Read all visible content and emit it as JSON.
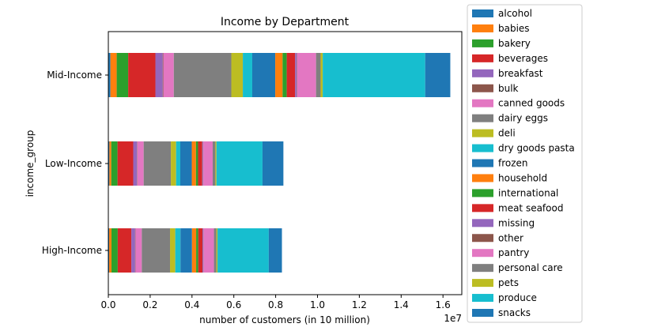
{
  "chart_data": {
    "type": "bar",
    "orientation": "horizontal",
    "stacked": true,
    "title": "Income by Department",
    "xlabel": "number of customers (in 10 million)",
    "ylabel": "income_group",
    "x_offset_label": "1e7",
    "xlim": [
      0,
      1.69
    ],
    "xticks": [
      "0.0",
      "0.2",
      "0.4",
      "0.6",
      "0.8",
      "1.0",
      "1.2",
      "1.4",
      "1.6"
    ],
    "grid": false,
    "legend_position": "outside right",
    "categories": [
      "High-Income",
      "Low-Income",
      "Mid-Income"
    ],
    "series": [
      {
        "name": "alcohol",
        "color": "#1f77b4",
        "values": [
          0.004,
          0.005,
          0.01
        ]
      },
      {
        "name": "babies",
        "color": "#ff7f0e",
        "values": [
          0.011,
          0.009,
          0.03
        ]
      },
      {
        "name": "bakery",
        "color": "#2ca02c",
        "values": [
          0.03,
          0.03,
          0.055
        ]
      },
      {
        "name": "beverages",
        "color": "#d62728",
        "values": [
          0.065,
          0.075,
          0.13
        ]
      },
      {
        "name": "breakfast",
        "color": "#9467bd",
        "values": [
          0.018,
          0.018,
          0.035
        ]
      },
      {
        "name": "bulk",
        "color": "#8c564b",
        "values": [
          0.002,
          0.002,
          0.003
        ]
      },
      {
        "name": "canned goods",
        "color": "#e377c2",
        "values": [
          0.03,
          0.03,
          0.05
        ]
      },
      {
        "name": "dairy eggs",
        "color": "#7f7f7f",
        "values": [
          0.135,
          0.13,
          0.275
        ]
      },
      {
        "name": "deli",
        "color": "#bcbd22",
        "values": [
          0.025,
          0.025,
          0.055
        ]
      },
      {
        "name": "dry goods pasta",
        "color": "#17becf",
        "values": [
          0.025,
          0.02,
          0.045
        ]
      },
      {
        "name": "frozen",
        "color": "#1f77b4",
        "values": [
          0.055,
          0.055,
          0.11
        ]
      },
      {
        "name": "household",
        "color": "#ff7f0e",
        "values": [
          0.02,
          0.02,
          0.035
        ]
      },
      {
        "name": "international",
        "color": "#2ca02c",
        "values": [
          0.01,
          0.01,
          0.02
        ]
      },
      {
        "name": "meat seafood",
        "color": "#d62728",
        "values": [
          0.02,
          0.02,
          0.04
        ]
      },
      {
        "name": "missing",
        "color": "#9467bd",
        "values": [
          0.004,
          0.004,
          0.008
        ]
      },
      {
        "name": "other",
        "color": "#8c564b",
        "values": [
          0.001,
          0.001,
          0.002
        ]
      },
      {
        "name": "pantry",
        "color": "#e377c2",
        "values": [
          0.05,
          0.045,
          0.09
        ]
      },
      {
        "name": "personal care",
        "color": "#7f7f7f",
        "values": [
          0.012,
          0.013,
          0.022
        ]
      },
      {
        "name": "pets",
        "color": "#bcbd22",
        "values": [
          0.005,
          0.005,
          0.01
        ]
      },
      {
        "name": "produce",
        "color": "#17becf",
        "values": [
          0.245,
          0.22,
          0.49
        ]
      },
      {
        "name": "snacks",
        "color": "#1f77b4",
        "values": [
          0.063,
          0.1,
          0.12
        ]
      }
    ]
  }
}
